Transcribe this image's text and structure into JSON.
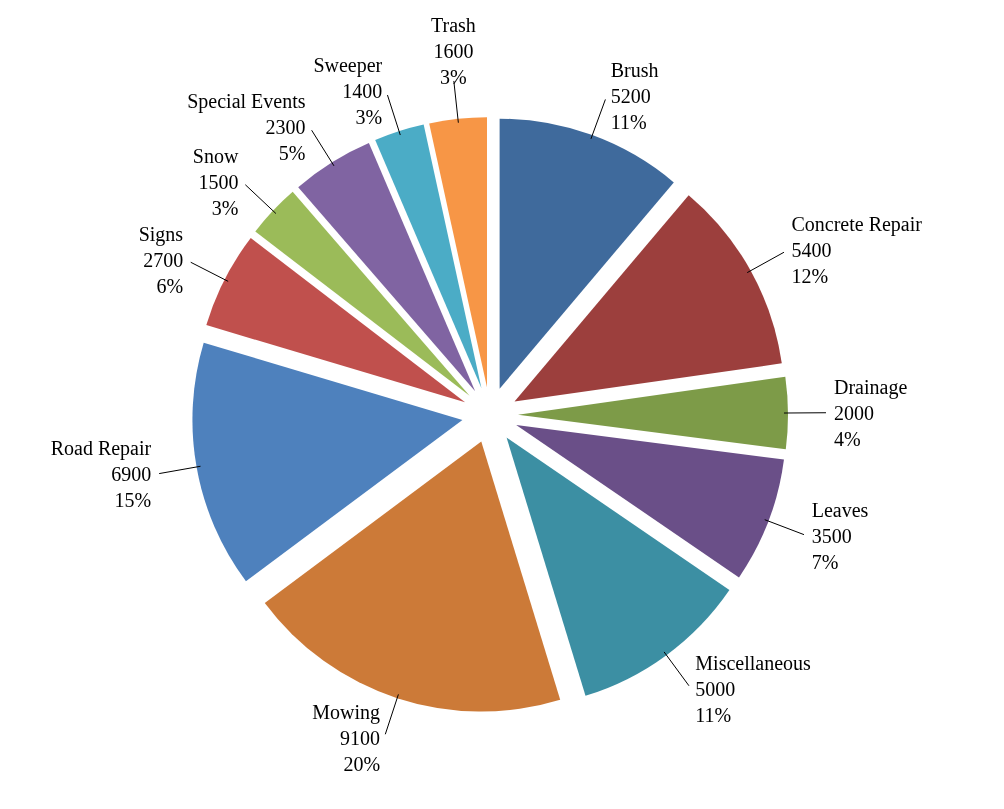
{
  "chart_data": {
    "type": "pie",
    "categories": [
      "Brush",
      "Concrete Repair",
      "Drainage",
      "Leaves",
      "Miscellaneous",
      "Mowing",
      "Road Repair",
      "Signs",
      "Snow",
      "Special Events",
      "Sweeper",
      "Trash"
    ],
    "values": [
      5200,
      5400,
      2000,
      3500,
      5000,
      9100,
      6900,
      2700,
      1500,
      2300,
      1400,
      1600
    ],
    "colors": [
      "#3f6a9c",
      "#9c3f3d",
      "#7d9b48",
      "#6a4f88",
      "#3c8fa3",
      "#cc7a38",
      "#4e81bd",
      "#c0504d",
      "#9bbb59",
      "#8064a2",
      "#4bacc6",
      "#f79646"
    ],
    "value_labels": [
      "5200\n11%",
      "5400\n12%",
      "2000\n4%",
      "3500\n7%",
      "5000\n11%",
      "9100\n20%",
      "6900\n15%",
      "2700\n6%",
      "1500\n3%",
      "2300\n5%",
      "1400\n3%",
      "1600\n3%"
    ]
  }
}
